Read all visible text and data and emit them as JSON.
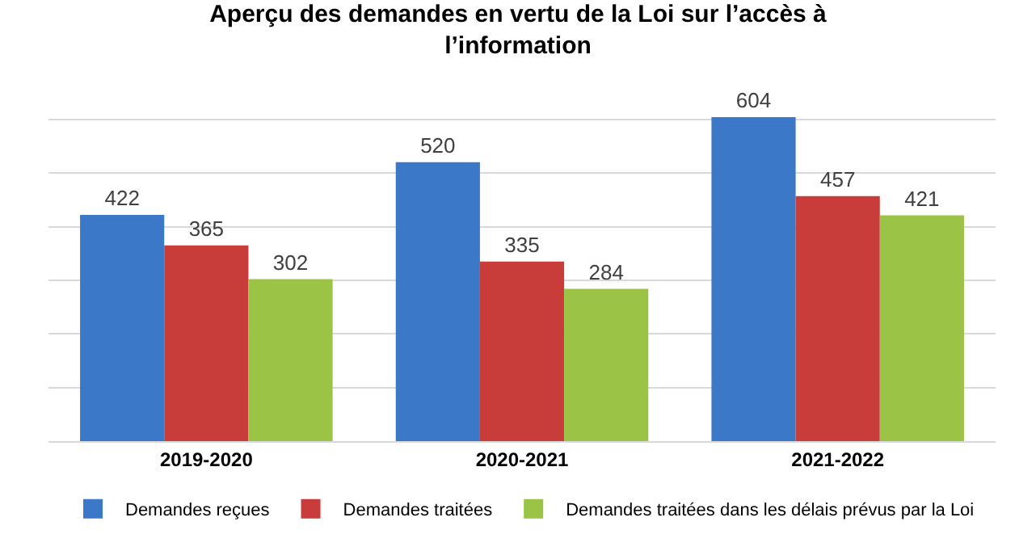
{
  "chart_data": {
    "type": "bar",
    "title": "Aperçu des demandes en vertu de la Loi sur l’accès à l’information",
    "categories": [
      "2019-2020",
      "2020-2021",
      "2021-2022"
    ],
    "series": [
      {
        "name": "Demandes reçues",
        "color": "#3c78c8",
        "values": [
          422,
          520,
          604
        ]
      },
      {
        "name": "Demandes traitées",
        "color": "#c83c3a",
        "values": [
          365,
          335,
          457
        ]
      },
      {
        "name": "Demandes traitées dans les délais prévus par la Loi",
        "color": "#9bc447",
        "values": [
          302,
          284,
          421
        ]
      }
    ],
    "yticks": [
      {
        "value": 0,
        "label": null
      },
      {
        "value": 100,
        "label": null
      },
      {
        "value": 200,
        "label": null
      },
      {
        "value": 300,
        "label": null
      },
      {
        "value": 400,
        "label": null
      },
      {
        "value": 500,
        "label": null
      },
      {
        "value": 600,
        "label": null
      }
    ],
    "grid": "y",
    "tick_labels": "x",
    "data_labels": true,
    "legend": "bottom"
  }
}
